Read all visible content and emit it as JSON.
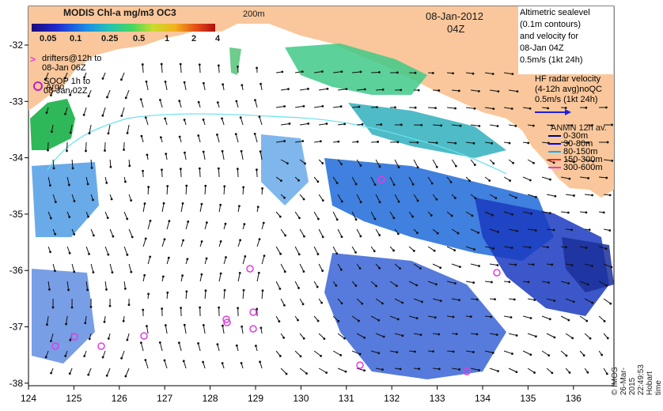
{
  "colorbar": {
    "title": "MODIS Chl-a mg/m3 OC3",
    "ticks": [
      "0.05",
      "0.1",
      "0.25",
      "0.5",
      "1",
      "2",
      "4"
    ]
  },
  "date": "08-Jan-2012",
  "time": "04Z",
  "depth_label": "200m",
  "altimetry_legend": [
    "Altimetric sealevel",
    "(0.1m contours)",
    "and velocity for",
    "08-Jan 04Z",
    "0.5m/s (1kt 24h)"
  ],
  "drifters_legend": [
    "drifters@12h to",
    "08-Jan 06Z"
  ],
  "soop_legend": [
    "SOOP 1h to",
    "08-Jan 02Z"
  ],
  "argo_label": "Argo",
  "hf_radar_legend": [
    "HF radar velocity",
    "(4-12h avg)noQC",
    "0.5m/s (1kt 24h)"
  ],
  "anmn_legend": {
    "title": "ANMN 12h av.",
    "items": [
      "0-30m",
      "30-80m",
      "80-150m",
      "150-300m",
      "300-600m"
    ]
  },
  "credit": "© IMOS 26-Mar-2015 22:49:53 Hobart time",
  "axes": {
    "x_ticks": [
      "124",
      "125",
      "126",
      "127",
      "128",
      "129",
      "130",
      "131",
      "132",
      "133",
      "134",
      "135",
      "136"
    ],
    "y_ticks": [
      "-32",
      "-33",
      "-34",
      "-35",
      "-36",
      "-37",
      "-38"
    ]
  },
  "colors": {
    "land": "#f9c79b",
    "arrows": "#111111",
    "contour": "#66e0f0",
    "argo": "#e23be2",
    "hf_radar": "#2020e0"
  }
}
